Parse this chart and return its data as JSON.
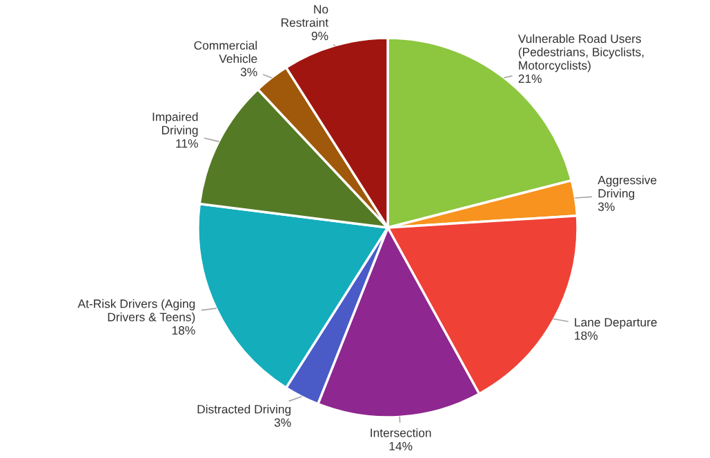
{
  "chart_data": {
    "type": "pie",
    "categories": [
      "Vulnerable Road Users\n(Pedestrians, Bicyclists,\nMotorcyclists)",
      "Aggressive\nDriving",
      "Lane Departure",
      "Intersection",
      "Distracted Driving",
      "At-Risk Drivers (Aging\nDrivers & Teens)",
      "Impaired\nDriving",
      "Commercial\nVehicle",
      "No\nRestraint"
    ],
    "values": [
      21,
      3,
      18,
      14,
      3,
      18,
      11,
      3,
      9
    ],
    "value_labels": [
      "21%",
      "3%",
      "18%",
      "14%",
      "3%",
      "18%",
      "11%",
      "3%",
      "9%"
    ],
    "colors": [
      "#8dc63f",
      "#f7931e",
      "#ef4136",
      "#8e278f",
      "#4a5bc8",
      "#14adbb",
      "#557a25",
      "#a0580a",
      "#a0150f"
    ],
    "legend": false
  }
}
